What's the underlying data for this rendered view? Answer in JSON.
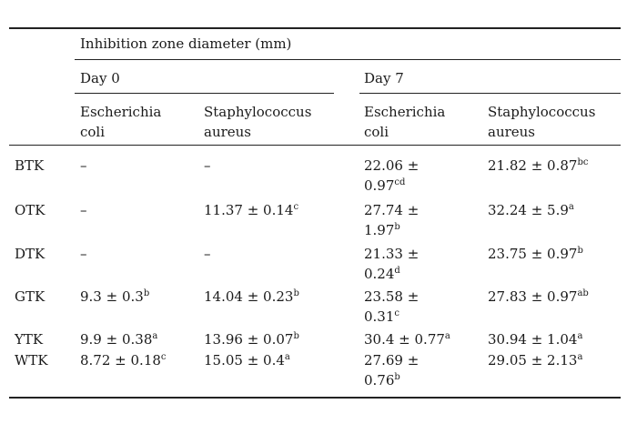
{
  "table": {
    "group_header": "Inhibition zone diameter (mm)",
    "days": [
      "Day 0",
      "Day 7"
    ],
    "species": [
      {
        "line1": "Escherichia",
        "line2": "coli"
      },
      {
        "line1": "Staphylococcus",
        "line2": "aureus"
      },
      {
        "line1": "Escherichia",
        "line2": "coli"
      },
      {
        "line1": "Staphylococcus",
        "line2": "aureus"
      }
    ],
    "rows": [
      {
        "label": "BTK",
        "cells": [
          {
            "l1": "–",
            "s1": "",
            "l2": "",
            "s2": ""
          },
          {
            "l1": "–",
            "s1": "",
            "l2": "",
            "s2": ""
          },
          {
            "l1": "22.06 ±",
            "s1": "",
            "l2": "0.97",
            "s2": "cd"
          },
          {
            "l1": "21.82 ± 0.87",
            "s1": "bc",
            "l2": "",
            "s2": ""
          }
        ]
      },
      {
        "label": "OTK",
        "cells": [
          {
            "l1": "–",
            "s1": "",
            "l2": "",
            "s2": ""
          },
          {
            "l1": "11.37 ± 0.14",
            "s1": "c",
            "l2": "",
            "s2": ""
          },
          {
            "l1": "27.74 ±",
            "s1": "",
            "l2": "1.97",
            "s2": "b"
          },
          {
            "l1": "32.24 ± 5.9",
            "s1": "a",
            "l2": "",
            "s2": ""
          }
        ]
      },
      {
        "label": "DTK",
        "cells": [
          {
            "l1": "–",
            "s1": "",
            "l2": "",
            "s2": ""
          },
          {
            "l1": "–",
            "s1": "",
            "l2": "",
            "s2": ""
          },
          {
            "l1": "21.33 ±",
            "s1": "",
            "l2": "0.24",
            "s2": "d"
          },
          {
            "l1": "23.75 ± 0.97",
            "s1": "b",
            "l2": "",
            "s2": ""
          }
        ]
      },
      {
        "label": "GTK",
        "cells": [
          {
            "l1": "9.3 ± 0.3",
            "s1": "b",
            "l2": "",
            "s2": ""
          },
          {
            "l1": "14.04 ± 0.23",
            "s1": "b",
            "l2": "",
            "s2": ""
          },
          {
            "l1": "23.58 ±",
            "s1": "",
            "l2": "0.31",
            "s2": "c"
          },
          {
            "l1": "27.83 ± 0.97",
            "s1": "ab",
            "l2": "",
            "s2": ""
          }
        ]
      },
      {
        "label": "YTK",
        "cells": [
          {
            "l1": "9.9 ± 0.38",
            "s1": "a",
            "l2": "",
            "s2": ""
          },
          {
            "l1": "13.96 ± 0.07",
            "s1": "b",
            "l2": "",
            "s2": ""
          },
          {
            "l1": "30.4 ± 0.77",
            "s1": "a",
            "l2": "",
            "s2": ""
          },
          {
            "l1": "30.94 ± 1.04",
            "s1": "a",
            "l2": "",
            "s2": ""
          }
        ]
      },
      {
        "label": "WTK",
        "cells": [
          {
            "l1": "8.72 ± 0.18",
            "s1": "c",
            "l2": "",
            "s2": ""
          },
          {
            "l1": "15.05 ± 0.4",
            "s1": "a",
            "l2": "",
            "s2": ""
          },
          {
            "l1": "27.69 ±",
            "s1": "",
            "l2": "0.76",
            "s2": "b"
          },
          {
            "l1": "29.05 ± 2.13",
            "s1": "a",
            "l2": "",
            "s2": ""
          }
        ]
      }
    ]
  }
}
